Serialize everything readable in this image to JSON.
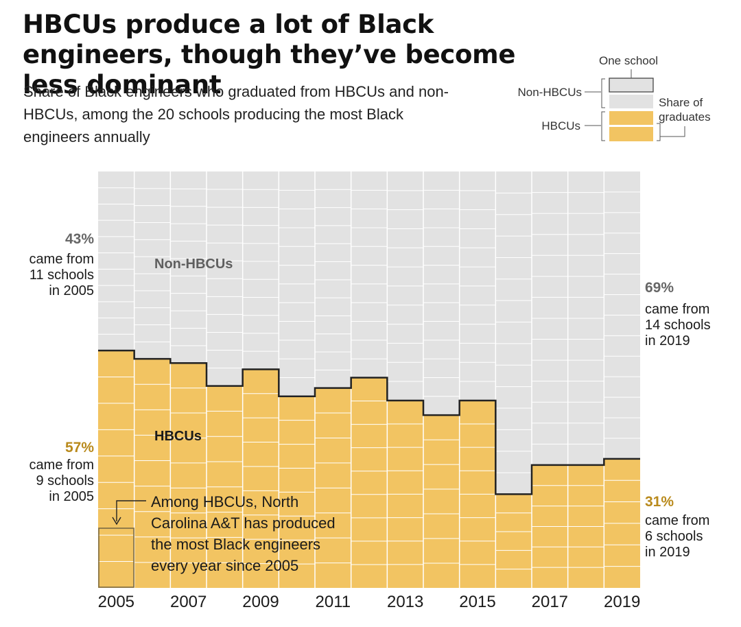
{
  "title": "HBCUs produce a lot of Black engineers, though they’ve become less dominant",
  "subtitle": "Share of Black engineers who graduated from HBCUs and non-HBCUs, among the 20 schools producing the most Black engineers annually",
  "legend": {
    "one_school": "One school",
    "non_hbcus": "Non-HBCUs",
    "hbcus": "HBCUs",
    "share_line1": "Share of",
    "share_line2": "graduates"
  },
  "labels": {
    "non_hbcus": "Non-HBCUs",
    "hbcus": "HBCUs"
  },
  "annotations": {
    "left_non": {
      "pct": "43%",
      "lines": [
        "came from",
        "11 schools",
        "in 2005"
      ]
    },
    "left_hbcu": {
      "pct": "57%",
      "lines": [
        "came from",
        "9 schools",
        "in 2005"
      ]
    },
    "right_non": {
      "pct": "69%",
      "lines": [
        "came from",
        "14 schools",
        "in 2019"
      ]
    },
    "right_hbcu": {
      "pct": "31%",
      "lines": [
        "came from",
        "6 schools",
        "in 2019"
      ]
    },
    "callout": [
      "Among HBCUs, North",
      "Carolina A&T has produced",
      "the most Black engineers",
      "every year since 2005"
    ]
  },
  "colors": {
    "hbcu": "#f2c462",
    "non_hbcu": "#e2e2e2",
    "pct_non": "#666666",
    "pct_hbcu": "#b98a1c",
    "boundary": "#222222"
  },
  "chart_data": {
    "type": "bar",
    "stacked": true,
    "categories": [
      "2005",
      "2006",
      "2007",
      "2008",
      "2009",
      "2010",
      "2011",
      "2012",
      "2013",
      "2014",
      "2015",
      "2016",
      "2017",
      "2018",
      "2019"
    ],
    "x_tick_labels": [
      "2005",
      "2007",
      "2009",
      "2011",
      "2013",
      "2015",
      "2017",
      "2019"
    ],
    "ylim": [
      0,
      100
    ],
    "series": [
      {
        "name": "HBCUs",
        "values": [
          57,
          55,
          54,
          48.5,
          52.5,
          46,
          48,
          50.5,
          45,
          41.5,
          45,
          22.5,
          29.5,
          29.5,
          31
        ]
      },
      {
        "name": "Non-HBCUs",
        "values": [
          43,
          45,
          46,
          51.5,
          47.5,
          54,
          52,
          49.5,
          55,
          58.5,
          55,
          77.5,
          70.5,
          70.5,
          69
        ]
      }
    ],
    "schools_per_year": {
      "HBCUs": [
        9,
        9,
        9,
        8,
        9,
        8,
        8,
        9,
        8,
        7,
        8,
        5,
        6,
        6,
        6
      ],
      "Non-HBCUs": [
        11,
        11,
        11,
        12,
        11,
        12,
        12,
        11,
        12,
        13,
        12,
        15,
        14,
        14,
        14
      ]
    }
  }
}
